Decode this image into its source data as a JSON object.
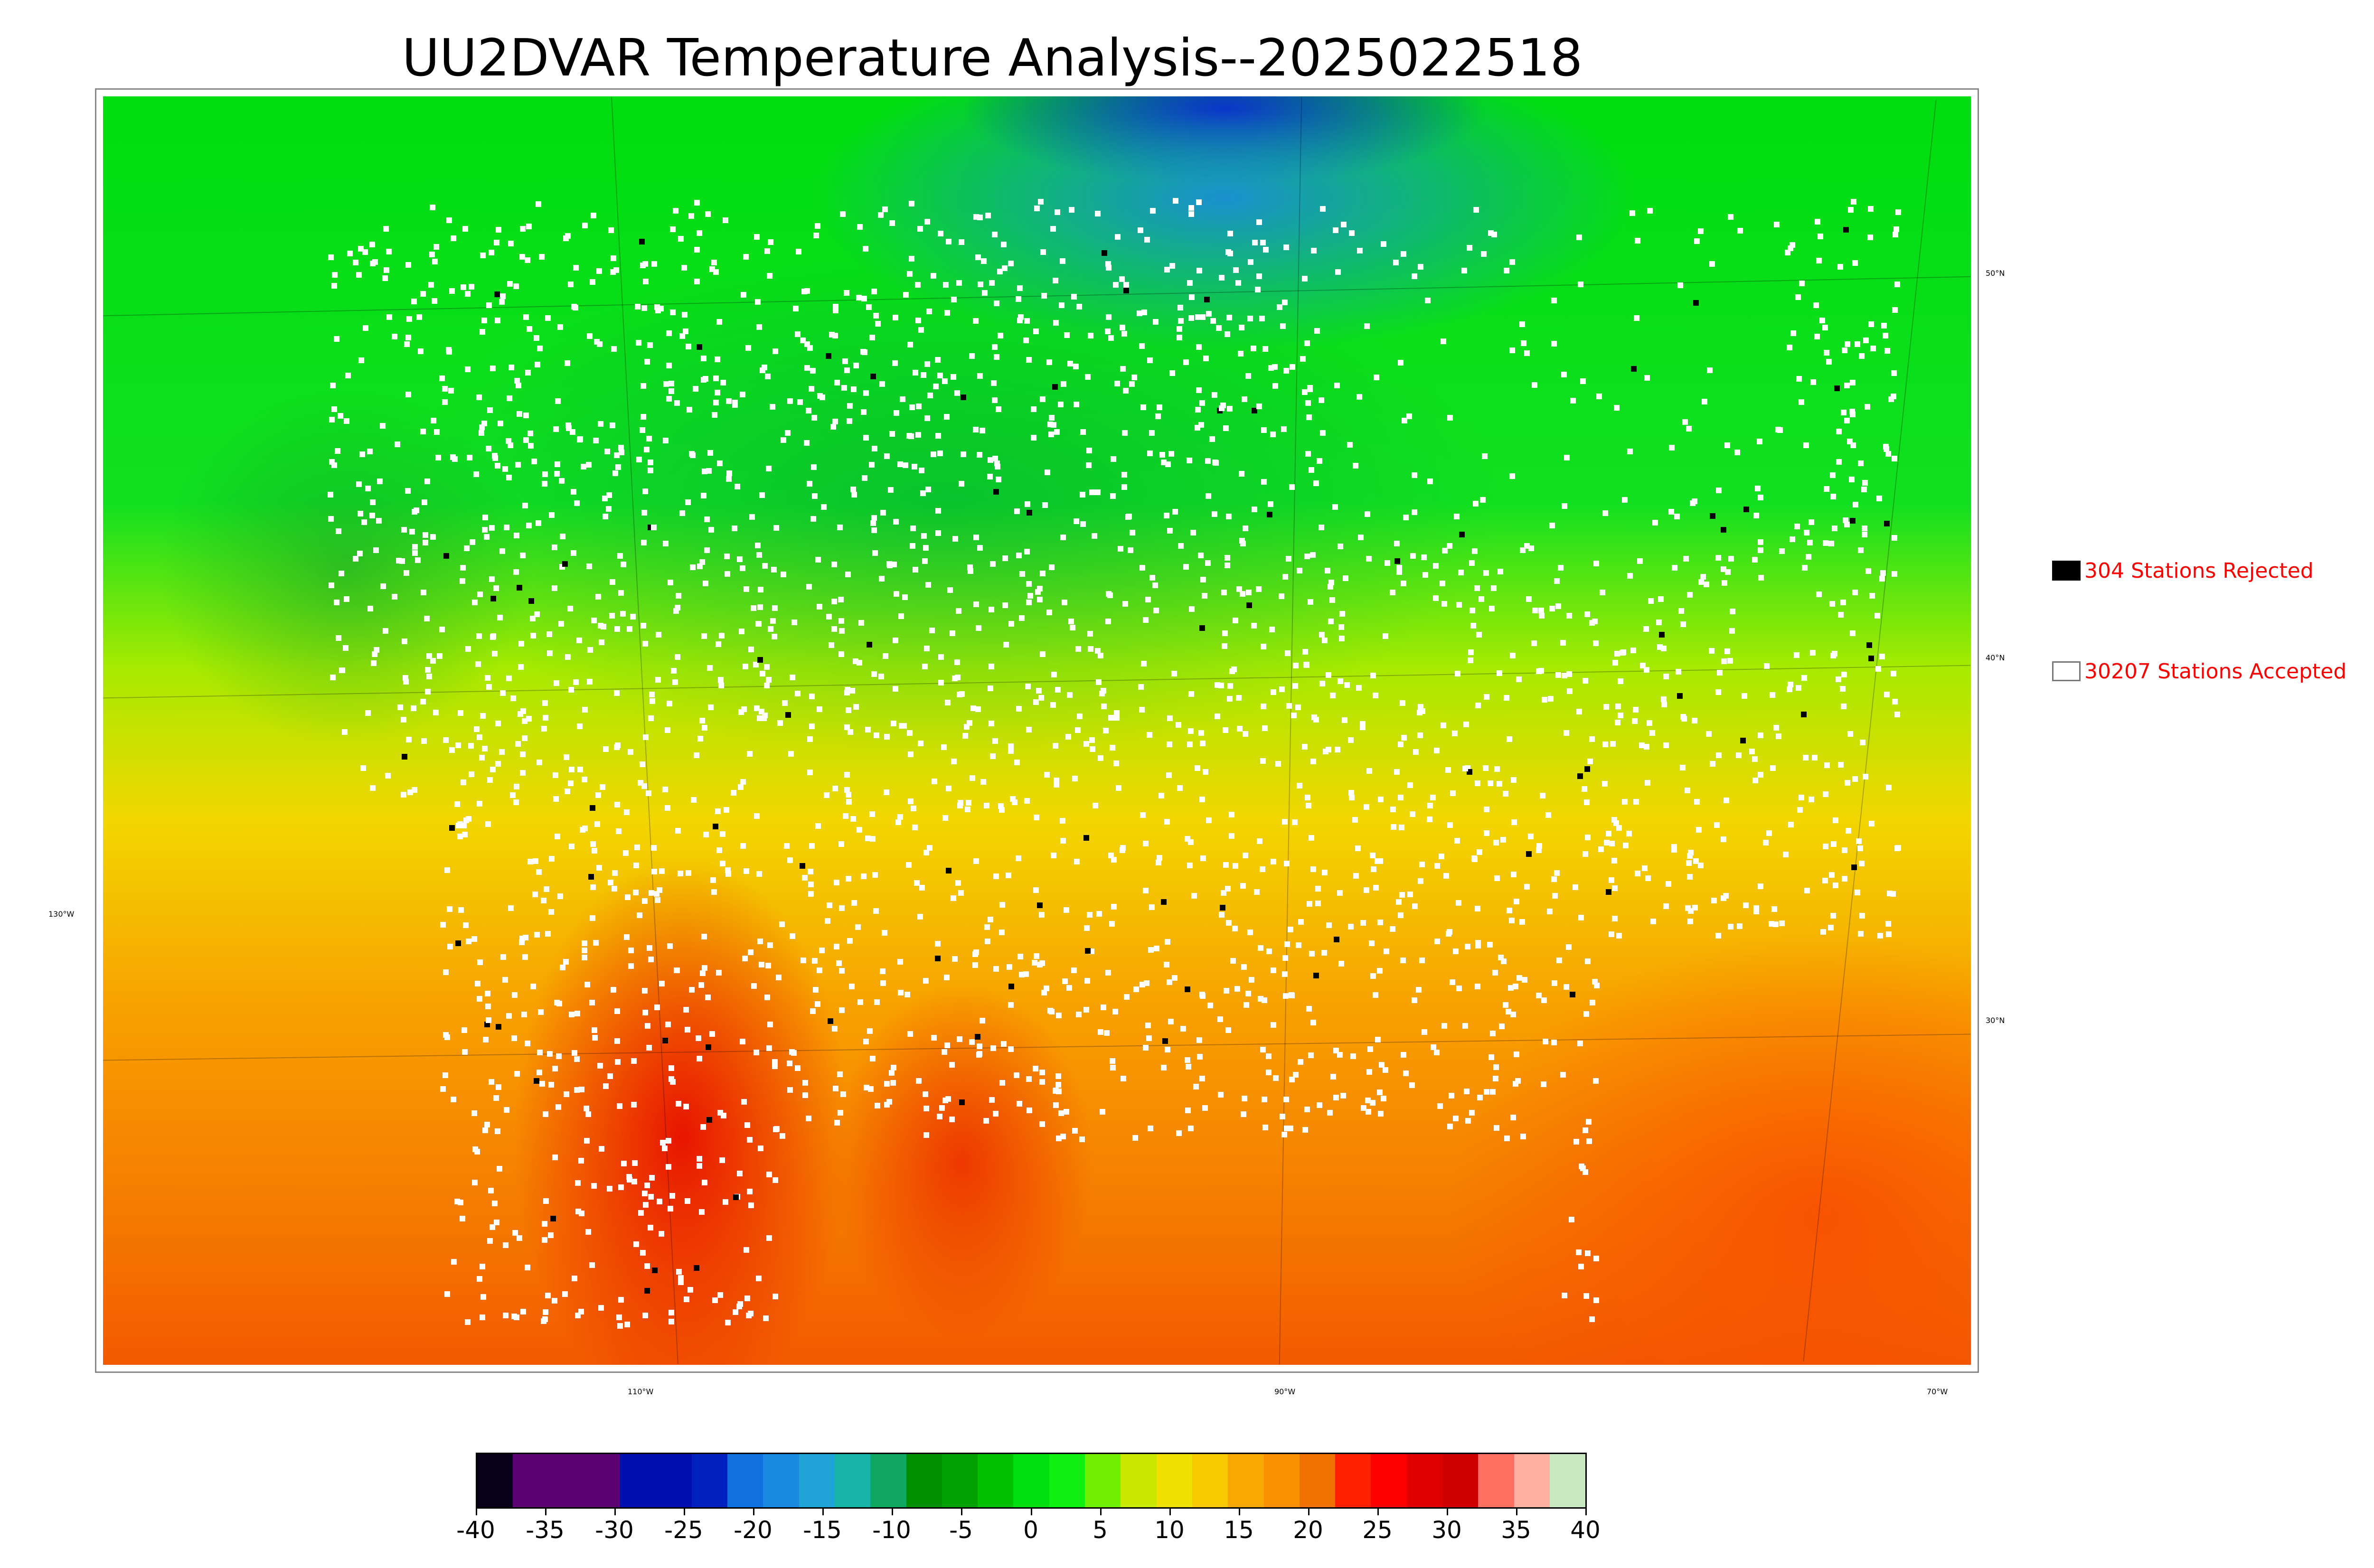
{
  "title": "UU2DVAR Temperature Analysis--2025022518",
  "map": {
    "projection_labels": {
      "longitude": [
        "130°W",
        "110°W",
        "90°W",
        "70°W"
      ],
      "latitude": [
        "50°N",
        "40°N",
        "30°N"
      ]
    },
    "field": "temperature",
    "colors": {
      "cold": "#0010c0",
      "cool": "#1a8ae0",
      "mild": "#10e020",
      "warm": "#f2d600",
      "hot": "#f35a00",
      "very_hot": "#e00000"
    }
  },
  "legend": {
    "rejected": {
      "count": 304,
      "label": "304 Stations Rejected",
      "color": "#000000"
    },
    "accepted": {
      "count": 30207,
      "label": "30207 Stations Accepted",
      "color": "#ffffff"
    }
  },
  "colorbar": {
    "min": -40,
    "max": 40,
    "ticks": [
      "-40",
      "-35",
      "-30",
      "-25",
      "-20",
      "-15",
      "-10",
      "-5",
      "0",
      "5",
      "10",
      "15",
      "20",
      "25",
      "30",
      "35",
      "40"
    ],
    "colors": [
      "#080018",
      "#5a0070",
      "#5a0070",
      "#5a0070",
      "#0010b0",
      "#0010b0",
      "#0020c0",
      "#1070e0",
      "#1a8ae0",
      "#20a4d8",
      "#18b4a8",
      "#10a860",
      "#009000",
      "#00a000",
      "#00c000",
      "#00e010",
      "#10f010",
      "#70f000",
      "#c8e800",
      "#f0e000",
      "#f8c800",
      "#f8a800",
      "#f89000",
      "#f07000",
      "#ff2000",
      "#ff0000",
      "#e00000",
      "#d00000",
      "#ff7060",
      "#ffb0a0",
      "#c8e8c0"
    ]
  },
  "station_counts": {
    "accepted": 30207,
    "rejected": 304
  }
}
